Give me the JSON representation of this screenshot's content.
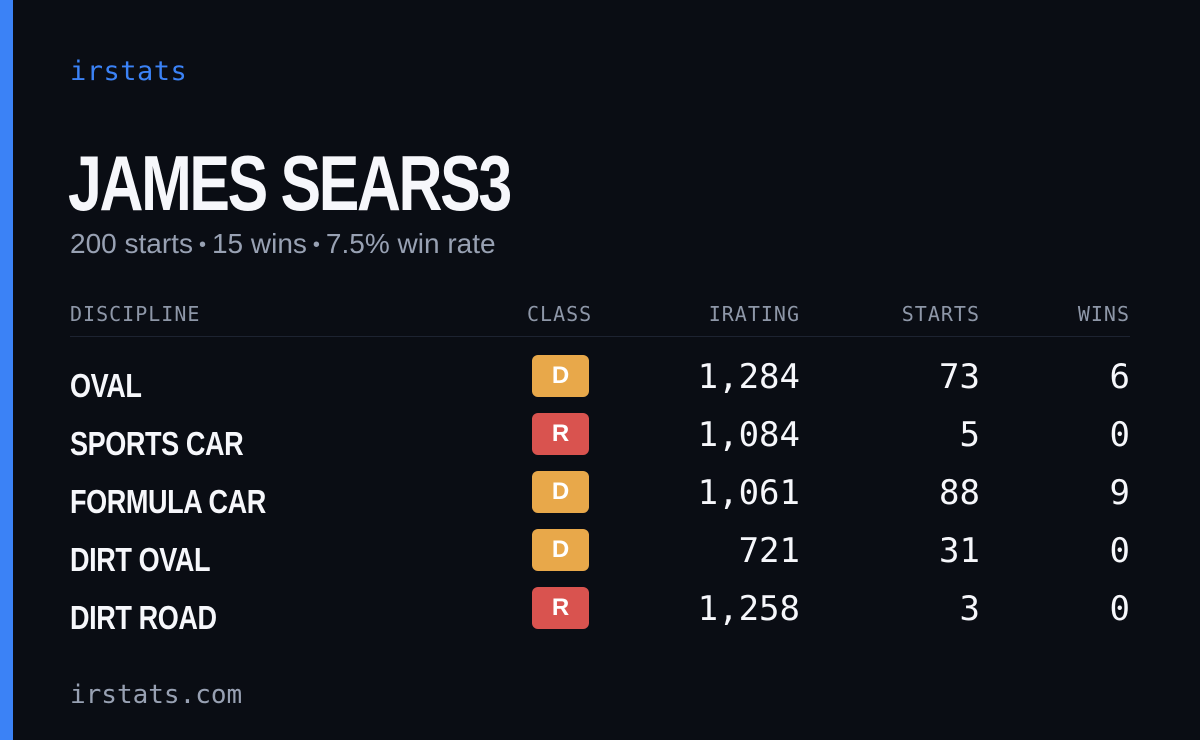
{
  "brand": "irstats",
  "player": {
    "name": "JAMES SEARS3",
    "starts_text": "200 starts",
    "wins_text": "15 wins",
    "win_rate_text": "7.5% win rate",
    "separator": "•"
  },
  "table": {
    "headers": {
      "discipline": "DISCIPLINE",
      "class": "CLASS",
      "irating": "IRATING",
      "starts": "STARTS",
      "wins": "WINS"
    },
    "rows": [
      {
        "discipline": "OVAL",
        "class": "D",
        "class_color": "#e8a84a",
        "irating": "1,284",
        "starts": "73",
        "wins": "6"
      },
      {
        "discipline": "SPORTS CAR",
        "class": "R",
        "class_color": "#d9534f",
        "irating": "1,084",
        "starts": "5",
        "wins": "0"
      },
      {
        "discipline": "FORMULA CAR",
        "class": "D",
        "class_color": "#e8a84a",
        "irating": "1,061",
        "starts": "88",
        "wins": "9"
      },
      {
        "discipline": "DIRT OVAL",
        "class": "D",
        "class_color": "#e8a84a",
        "irating": "721",
        "starts": "31",
        "wins": "0"
      },
      {
        "discipline": "DIRT ROAD",
        "class": "R",
        "class_color": "#d9534f",
        "irating": "1,258",
        "starts": "3",
        "wins": "0"
      }
    ]
  },
  "footer": {
    "url_text": "irstats.com"
  },
  "colors": {
    "background": "#0a0d14",
    "accent": "#3b82f6",
    "class_d": "#e8a84a",
    "class_r": "#d9534f",
    "muted_text": "#98a1b3"
  }
}
